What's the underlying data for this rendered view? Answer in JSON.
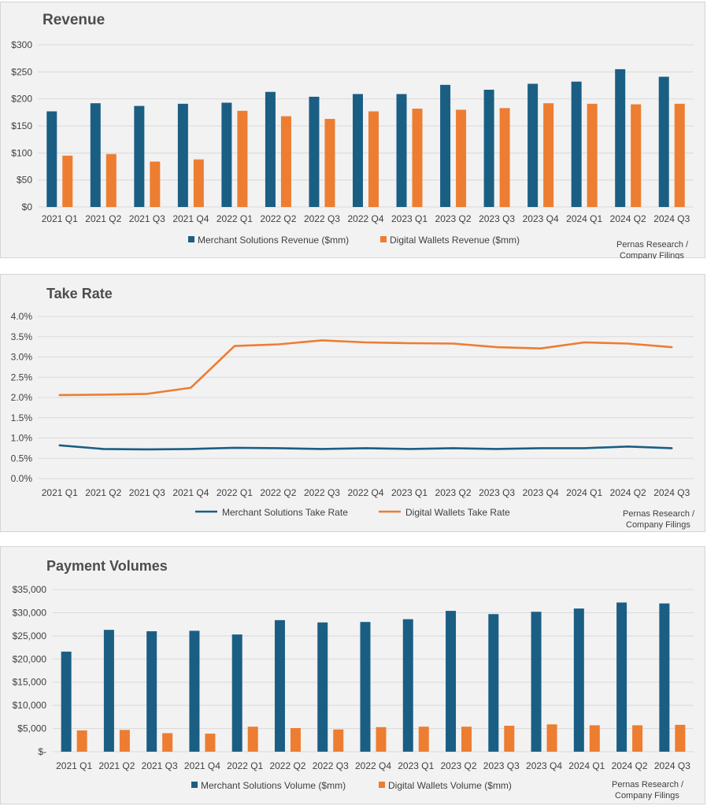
{
  "colors": {
    "merchant": "#1b5e84",
    "wallets": "#ed7d31",
    "grid": "#d9d9d9",
    "text": "#404040"
  },
  "source": {
    "line1": "Pernas Research /",
    "line2": "Company Filings"
  },
  "chart_data": [
    {
      "type": "bar",
      "title": "Revenue",
      "categories": [
        "2021 Q1",
        "2021 Q2",
        "2021 Q3",
        "2021 Q4",
        "2022 Q1",
        "2022 Q2",
        "2022 Q3",
        "2022 Q4",
        "2023 Q1",
        "2023 Q2",
        "2023 Q3",
        "2023 Q4",
        "2024 Q1",
        "2024 Q2",
        "2024 Q3"
      ],
      "ylim": [
        0,
        300
      ],
      "yticks": [
        0,
        50,
        100,
        150,
        200,
        250,
        300
      ],
      "ytick_labels": [
        "$0",
        "$50",
        "$100",
        "$150",
        "$200",
        "$250",
        "$300"
      ],
      "series": [
        {
          "name": "Merchant Solutions Revenue ($mm)",
          "values": [
            177,
            192,
            187,
            191,
            193,
            213,
            204,
            209,
            209,
            226,
            217,
            228,
            232,
            255,
            241
          ]
        },
        {
          "name": "Digital Wallets Revenue ($mm)",
          "values": [
            95,
            98,
            84,
            88,
            178,
            168,
            163,
            177,
            182,
            180,
            183,
            192,
            191,
            190,
            191
          ]
        }
      ],
      "legend": "bottom",
      "grid": true
    },
    {
      "type": "line",
      "title": "Take Rate",
      "categories": [
        "2021 Q1",
        "2021 Q2",
        "2021 Q3",
        "2021 Q4",
        "2022 Q1",
        "2022 Q2",
        "2022 Q3",
        "2022 Q4",
        "2023 Q1",
        "2023 Q2",
        "2023 Q3",
        "2023 Q4",
        "2024 Q1",
        "2024 Q2",
        "2024 Q3"
      ],
      "ylim": [
        0,
        4.0
      ],
      "yticks": [
        0,
        0.5,
        1.0,
        1.5,
        2.0,
        2.5,
        3.0,
        3.5,
        4.0
      ],
      "ytick_labels": [
        "0.0%",
        "0.5%",
        "1.0%",
        "1.5%",
        "2.0%",
        "2.5%",
        "3.0%",
        "3.5%",
        "4.0%"
      ],
      "series": [
        {
          "name": "Merchant Solutions Take Rate",
          "values": [
            0.82,
            0.73,
            0.72,
            0.73,
            0.76,
            0.75,
            0.73,
            0.75,
            0.73,
            0.75,
            0.73,
            0.75,
            0.75,
            0.79,
            0.75
          ]
        },
        {
          "name": "Digital Wallets Take Rate",
          "values": [
            2.06,
            2.07,
            2.09,
            2.24,
            3.27,
            3.31,
            3.41,
            3.36,
            3.34,
            3.33,
            3.24,
            3.21,
            3.36,
            3.33,
            3.24
          ]
        }
      ],
      "legend": "bottom",
      "grid": true
    },
    {
      "type": "bar",
      "title": "Payment Volumes",
      "categories": [
        "2021 Q1",
        "2021 Q2",
        "2021 Q3",
        "2021 Q4",
        "2022 Q1",
        "2022 Q2",
        "2022 Q3",
        "2022 Q4",
        "2023 Q1",
        "2023 Q2",
        "2023 Q3",
        "2023 Q4",
        "2024 Q1",
        "2024 Q2",
        "2024 Q3"
      ],
      "ylim": [
        0,
        35000
      ],
      "yticks": [
        0,
        5000,
        10000,
        15000,
        20000,
        25000,
        30000,
        35000
      ],
      "ytick_labels": [
        "$-",
        "$5,000",
        "$10,000",
        "$15,000",
        "$20,000",
        "$25,000",
        "$30,000",
        "$35,000"
      ],
      "series": [
        {
          "name": "Merchant Solutions Volume ($mm)",
          "values": [
            21600,
            26300,
            26000,
            26100,
            25300,
            28400,
            27900,
            28000,
            28600,
            30400,
            29700,
            30200,
            30900,
            32200,
            32000
          ]
        },
        {
          "name": "Digital Wallets Volume ($mm)",
          "values": [
            4600,
            4700,
            4000,
            3900,
            5400,
            5100,
            4800,
            5300,
            5400,
            5400,
            5600,
            5900,
            5700,
            5700,
            5800
          ]
        }
      ],
      "legend": "bottom",
      "grid": true
    }
  ]
}
